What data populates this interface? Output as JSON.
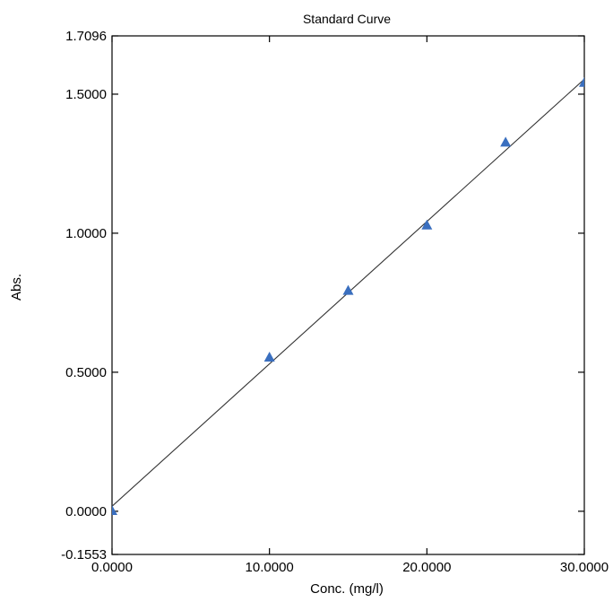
{
  "chart_data": {
    "type": "scatter",
    "title": "Standard Curve",
    "xlabel": "Conc. (mg/l)",
    "ylabel": "Abs.",
    "xlim": [
      0,
      30
    ],
    "ylim": [
      -0.1553,
      1.7096
    ],
    "xticks": [
      {
        "value": 0,
        "label": "0.0000"
      },
      {
        "value": 10,
        "label": "10.0000"
      },
      {
        "value": 20,
        "label": "20.0000"
      },
      {
        "value": 30,
        "label": "30.0000"
      }
    ],
    "yticks": [
      {
        "value": -0.1553,
        "label": "-0.1553"
      },
      {
        "value": 0,
        "label": "0.0000"
      },
      {
        "value": 0.5,
        "label": "0.5000"
      },
      {
        "value": 1.0,
        "label": "1.0000"
      },
      {
        "value": 1.5,
        "label": "1.5000"
      },
      {
        "value": 1.7096,
        "label": "1.7096"
      }
    ],
    "series": [
      {
        "marker": "triangle",
        "color": "#3a6fbf",
        "x": [
          0,
          10,
          15,
          20,
          25,
          30
        ],
        "y": [
          0.0,
          0.552,
          0.792,
          1.027,
          1.325,
          1.54
        ]
      }
    ],
    "fit_line": {
      "color": "#333333",
      "x": [
        0,
        30
      ],
      "y": [
        0.018,
        1.554
      ]
    },
    "grid": false,
    "legend": "none"
  }
}
